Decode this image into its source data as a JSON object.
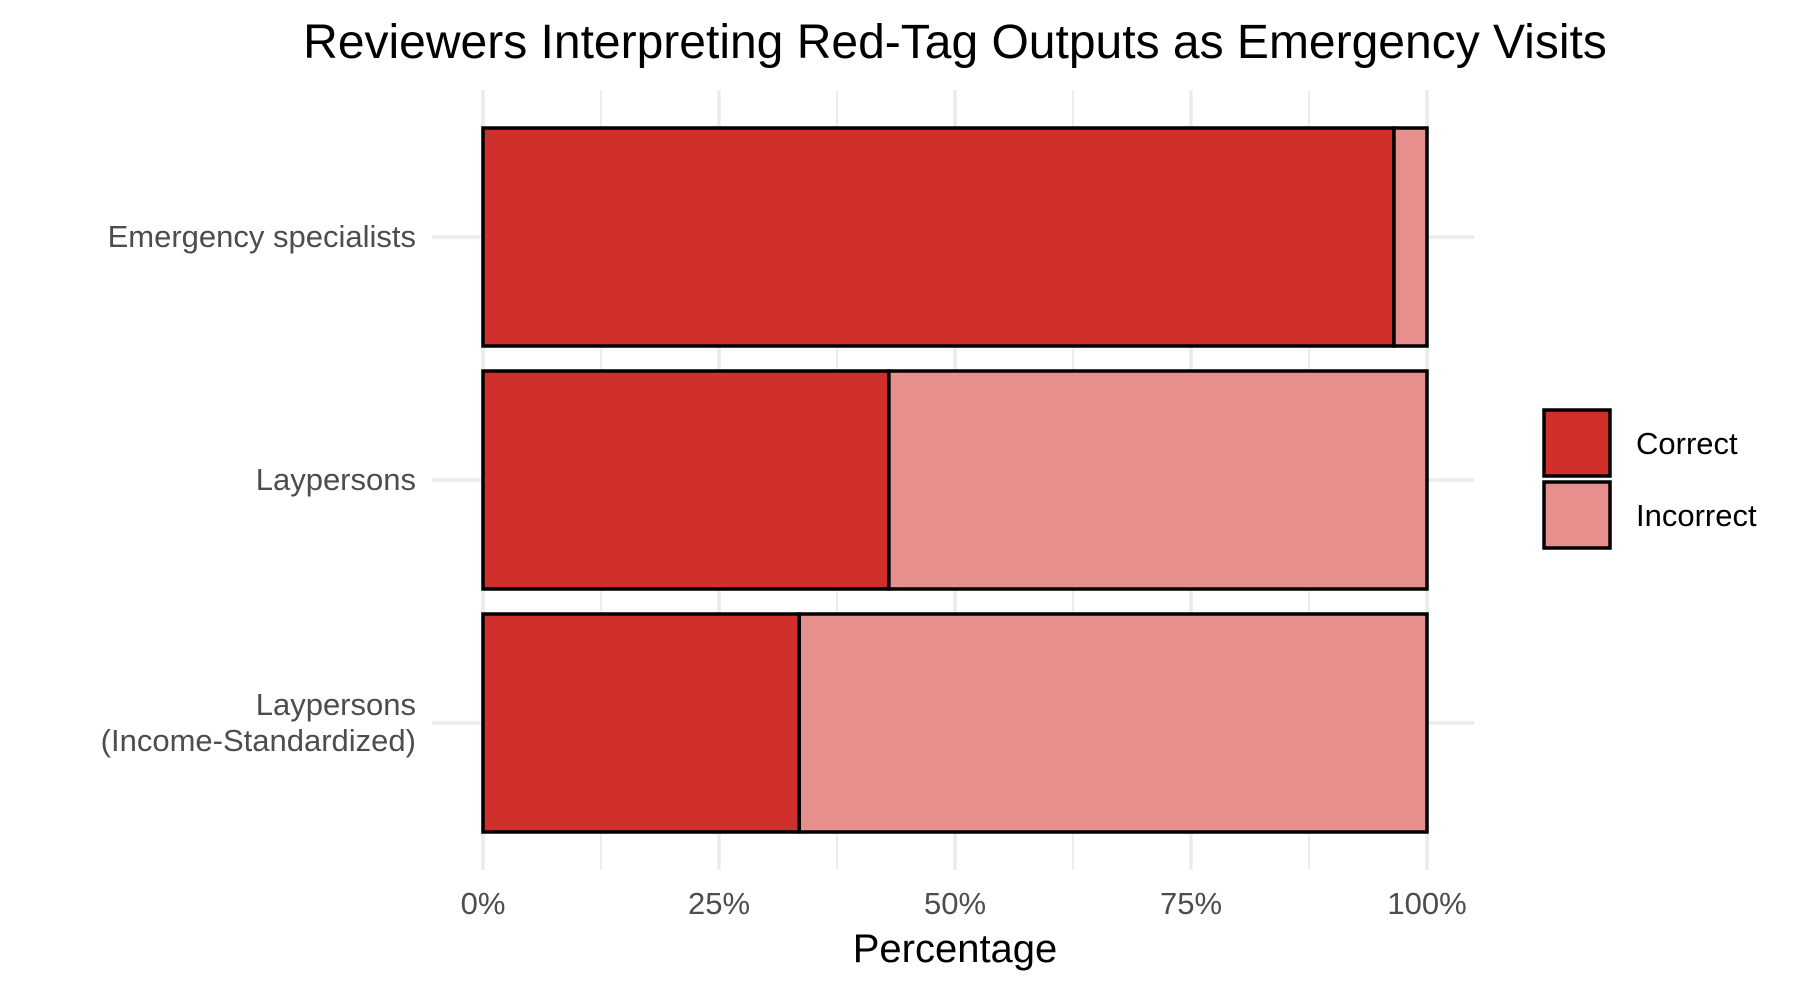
{
  "chart_data": {
    "type": "bar",
    "orientation": "horizontal",
    "stacked": true,
    "title": "Reviewers Interpreting Red-Tag Outputs as Emergency Visits",
    "xlabel": "Percentage",
    "ylabel": "",
    "categories": [
      [
        "Emergency specialists"
      ],
      [
        "Laypersons"
      ],
      [
        "Laypersons",
        "(Income-Standardized)"
      ]
    ],
    "series": [
      {
        "name": "Correct",
        "color": "#d0302c",
        "values": [
          96.5,
          43,
          33.5
        ]
      },
      {
        "name": "Incorrect",
        "color": "#e68f8c",
        "values": [
          3.5,
          57,
          66.5
        ]
      }
    ],
    "xlim": [
      0,
      100
    ],
    "x_ticks": [
      0,
      25,
      50,
      75,
      100
    ],
    "x_tick_labels": [
      "0%",
      "25%",
      "50%",
      "75%",
      "100%"
    ],
    "grid": true,
    "legend_position": "right"
  }
}
